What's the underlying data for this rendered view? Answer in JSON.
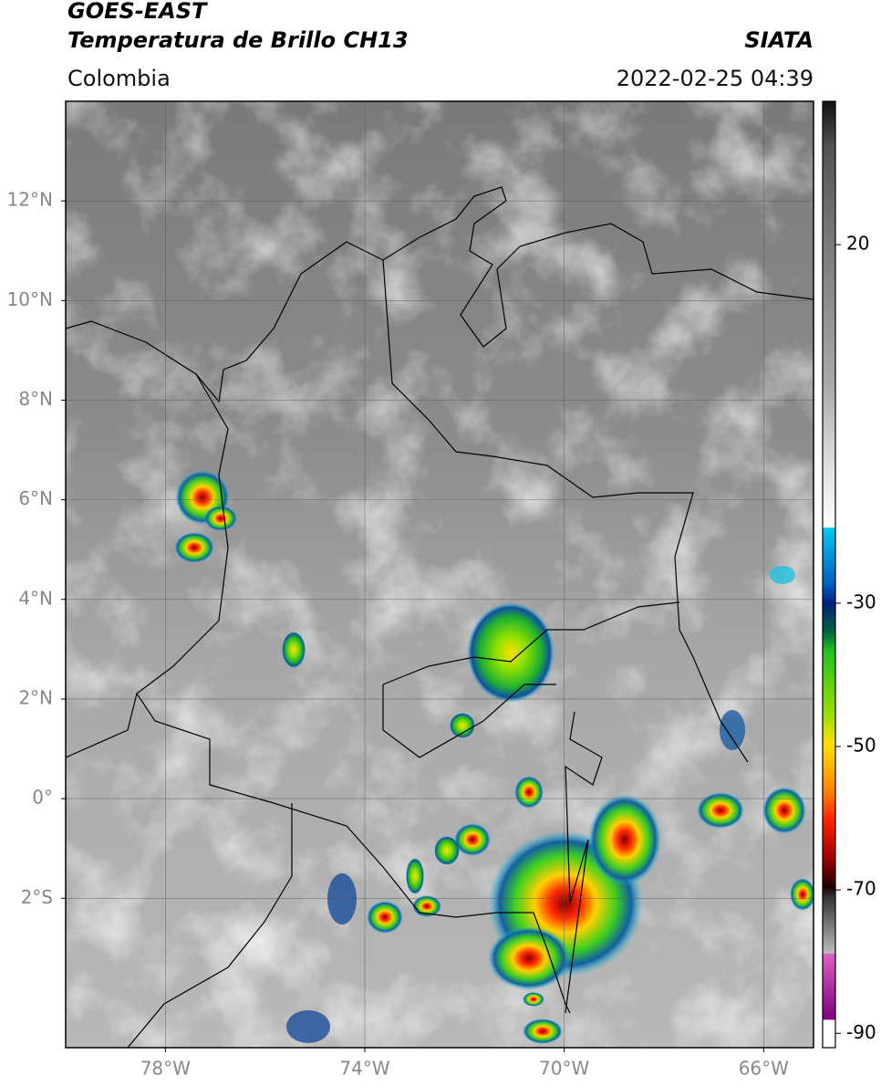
{
  "header": {
    "title": "GOES-EAST",
    "subtitle": "Temperatura de Brillo CH13",
    "region": "Colombia",
    "source": "SIATA",
    "datetime": "2022-02-25 04:39"
  },
  "map": {
    "xlim": [
      -80,
      -65
    ],
    "ylim": [
      -5,
      14
    ],
    "yticks": [
      {
        "value": 12,
        "label": "12°N"
      },
      {
        "value": 10,
        "label": "10°N"
      },
      {
        "value": 8,
        "label": "8°N"
      },
      {
        "value": 6,
        "label": "6°N"
      },
      {
        "value": 4,
        "label": "4°N"
      },
      {
        "value": 2,
        "label": "2°N"
      },
      {
        "value": 0,
        "label": "0°"
      },
      {
        "value": -2,
        "label": "2°S"
      }
    ],
    "xticks": [
      {
        "value": -78,
        "label": "78°W"
      },
      {
        "value": -74,
        "label": "74°W"
      },
      {
        "value": -70,
        "label": "70°W"
      },
      {
        "value": -66,
        "label": "66°W"
      }
    ],
    "grid": true
  },
  "colorbar": {
    "lim": [
      -92,
      40
    ],
    "ticks": [
      20,
      -30,
      -50,
      -70,
      -90
    ]
  }
}
